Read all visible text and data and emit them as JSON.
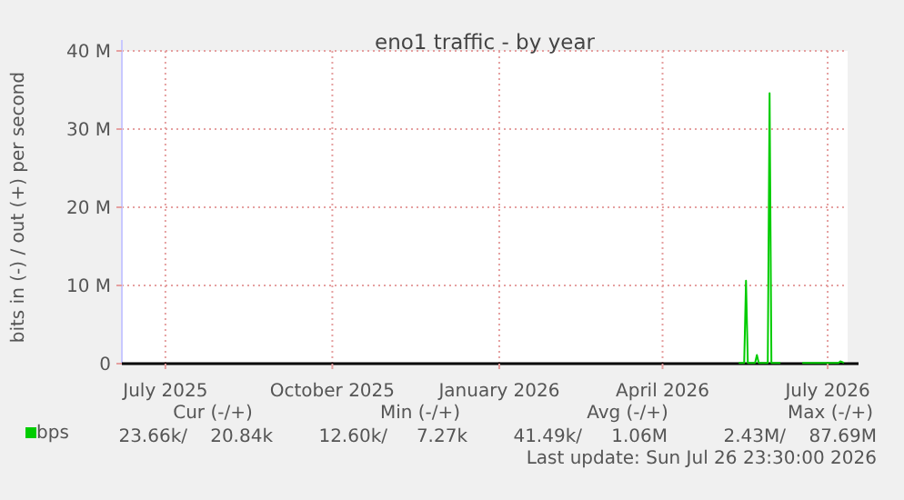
{
  "chart_data": {
    "type": "line",
    "title": "eno1 traffic - by year",
    "ylabel": "bits in (-) / out (+) per second",
    "x": [
      "2026-05-28",
      "2026-05-31",
      "2026-06-01",
      "2026-06-02",
      "2026-06-06",
      "2026-06-07",
      "2026-06-08",
      "2026-06-13",
      "2026-06-14",
      "2026-06-15",
      "2026-06-20",
      "2026-06-26",
      "2026-07-02",
      "2026-07-22",
      "2026-07-23",
      "2026-07-25"
    ],
    "series": [
      {
        "name": "bps",
        "color": "#00cc00",
        "values": [
          0.1,
          0.1,
          10.6,
          0.1,
          0.1,
          1.1,
          0.1,
          0.1,
          34.6,
          0.1,
          0.1,
          null,
          0.1,
          0.1,
          0.3,
          0.1
        ]
      }
    ],
    "xlim": [
      "2025-06-22",
      "2026-07-27"
    ],
    "xticks": [
      {
        "value": "2025-07-16",
        "label": "July 2025"
      },
      {
        "value": "2025-10-16",
        "label": "October 2025"
      },
      {
        "value": "2026-01-16",
        "label": "January 2026"
      },
      {
        "value": "2026-04-16",
        "label": "April 2026"
      },
      {
        "value": "2026-07-16",
        "label": "July 2026"
      }
    ],
    "ylim": [
      0,
      40
    ],
    "yticks": [
      0,
      {
        "value": 10,
        "label": "10 M"
      },
      {
        "value": 20,
        "label": "20 M"
      },
      {
        "value": 30,
        "label": "30 M"
      },
      {
        "value": 40,
        "label": "40 M"
      }
    ],
    "grid": true,
    "legend": "bottom left",
    "line_style": "solid",
    "marker": "none",
    "annotations": [
      "Cur (-/+)",
      "Min (-/+)",
      "Avg (-/+)",
      "Max (-/+)",
      "23.66k/",
      "20.84k",
      "12.60k/",
      "7.27k",
      "41.49k/",
      "1.06M",
      "2.43M/",
      "87.69M",
      "Last update: Sun Jul 26 23:30:00 2026"
    ]
  }
}
